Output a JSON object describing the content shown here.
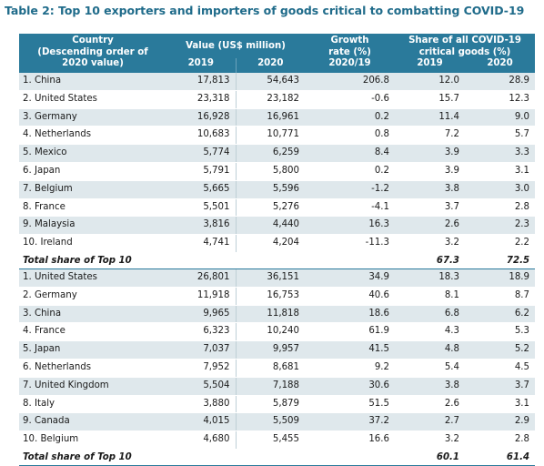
{
  "title": "Table 2: Top 10 exporters and importers of goods critical to combatting COVID-19",
  "headers": {
    "country_line1": "Country",
    "country_line2": "(Descending order of",
    "country_line3": "2020 value)",
    "value": "Value (US$ million)",
    "value_2019": "2019",
    "value_2020": "2020",
    "growth_line1": "Growth",
    "growth_line2": "rate (%)",
    "growth_line3": "2020/19",
    "share_line1": "Share of all COVID-19",
    "share_line2": "critical goods (%)",
    "share_2019": "2019",
    "share_2020": "2020"
  },
  "exporters": [
    {
      "name": "1. China",
      "v2019": "17,813",
      "v2020": "54,643",
      "growth": "206.8",
      "s2019": "12.0",
      "s2020": "28.9"
    },
    {
      "name": "2. United States",
      "v2019": "23,318",
      "v2020": "23,182",
      "growth": "-0.6",
      "s2019": "15.7",
      "s2020": "12.3"
    },
    {
      "name": "3. Germany",
      "v2019": "16,928",
      "v2020": "16,961",
      "growth": "0.2",
      "s2019": "11.4",
      "s2020": "9.0"
    },
    {
      "name": "4. Netherlands",
      "v2019": "10,683",
      "v2020": "10,771",
      "growth": "0.8",
      "s2019": "7.2",
      "s2020": "5.7"
    },
    {
      "name": "5. Mexico",
      "v2019": "5,774",
      "v2020": "6,259",
      "growth": "8.4",
      "s2019": "3.9",
      "s2020": "3.3"
    },
    {
      "name": "6. Japan",
      "v2019": "5,791",
      "v2020": "5,800",
      "growth": "0.2",
      "s2019": "3.9",
      "s2020": "3.1"
    },
    {
      "name": "7. Belgium",
      "v2019": "5,665",
      "v2020": "5,596",
      "growth": "-1.2",
      "s2019": "3.8",
      "s2020": "3.0"
    },
    {
      "name": "8. France",
      "v2019": "5,501",
      "v2020": "5,276",
      "growth": "-4.1",
      "s2019": "3.7",
      "s2020": "2.8"
    },
    {
      "name": "9. Malaysia",
      "v2019": "3,816",
      "v2020": "4,440",
      "growth": "16.3",
      "s2019": "2.6",
      "s2020": "2.3"
    },
    {
      "name": "10. Ireland",
      "v2019": "4,741",
      "v2020": "4,204",
      "growth": "-11.3",
      "s2019": "3.2",
      "s2020": "2.2"
    }
  ],
  "exporters_total": {
    "label": "Total share of Top 10",
    "s2019": "67.3",
    "s2020": "72.5"
  },
  "importers": [
    {
      "name": "1. United States",
      "v2019": "26,801",
      "v2020": "36,151",
      "growth": "34.9",
      "s2019": "18.3",
      "s2020": "18.9"
    },
    {
      "name": "2. Germany",
      "v2019": "11,918",
      "v2020": "16,753",
      "growth": "40.6",
      "s2019": "8.1",
      "s2020": "8.7"
    },
    {
      "name": "3. China",
      "v2019": "9,965",
      "v2020": "11,818",
      "growth": "18.6",
      "s2019": "6.8",
      "s2020": "6.2"
    },
    {
      "name": "4. France",
      "v2019": "6,323",
      "v2020": "10,240",
      "growth": "61.9",
      "s2019": "4.3",
      "s2020": "5.3"
    },
    {
      "name": "5. Japan",
      "v2019": "7,037",
      "v2020": "9,957",
      "growth": "41.5",
      "s2019": "4.8",
      "s2020": "5.2"
    },
    {
      "name": "6. Netherlands",
      "v2019": "7,952",
      "v2020": "8,681",
      "growth": "9.2",
      "s2019": "5.4",
      "s2020": "4.5"
    },
    {
      "name": "7. United Kingdom",
      "v2019": "5,504",
      "v2020": "7,188",
      "growth": "30.6",
      "s2019": "3.8",
      "s2020": "3.7"
    },
    {
      "name": "8. Italy",
      "v2019": "3,880",
      "v2020": "5,879",
      "growth": "51.5",
      "s2019": "2.6",
      "s2020": "3.1"
    },
    {
      "name": "9. Canada",
      "v2019": "4,015",
      "v2020": "5,509",
      "growth": "37.2",
      "s2019": "2.7",
      "s2020": "2.9"
    },
    {
      "name": "10. Belgium",
      "v2019": "4,680",
      "v2020": "5,455",
      "growth": "16.6",
      "s2019": "3.2",
      "s2020": "2.8"
    }
  ],
  "importers_total": {
    "label": "Total share of Top 10",
    "s2019": "60.1",
    "s2020": "61.4"
  },
  "colors": {
    "header_bg": "#2a7a9b",
    "title": "#1f6b8a",
    "row_alt": "#dfe8ec"
  }
}
